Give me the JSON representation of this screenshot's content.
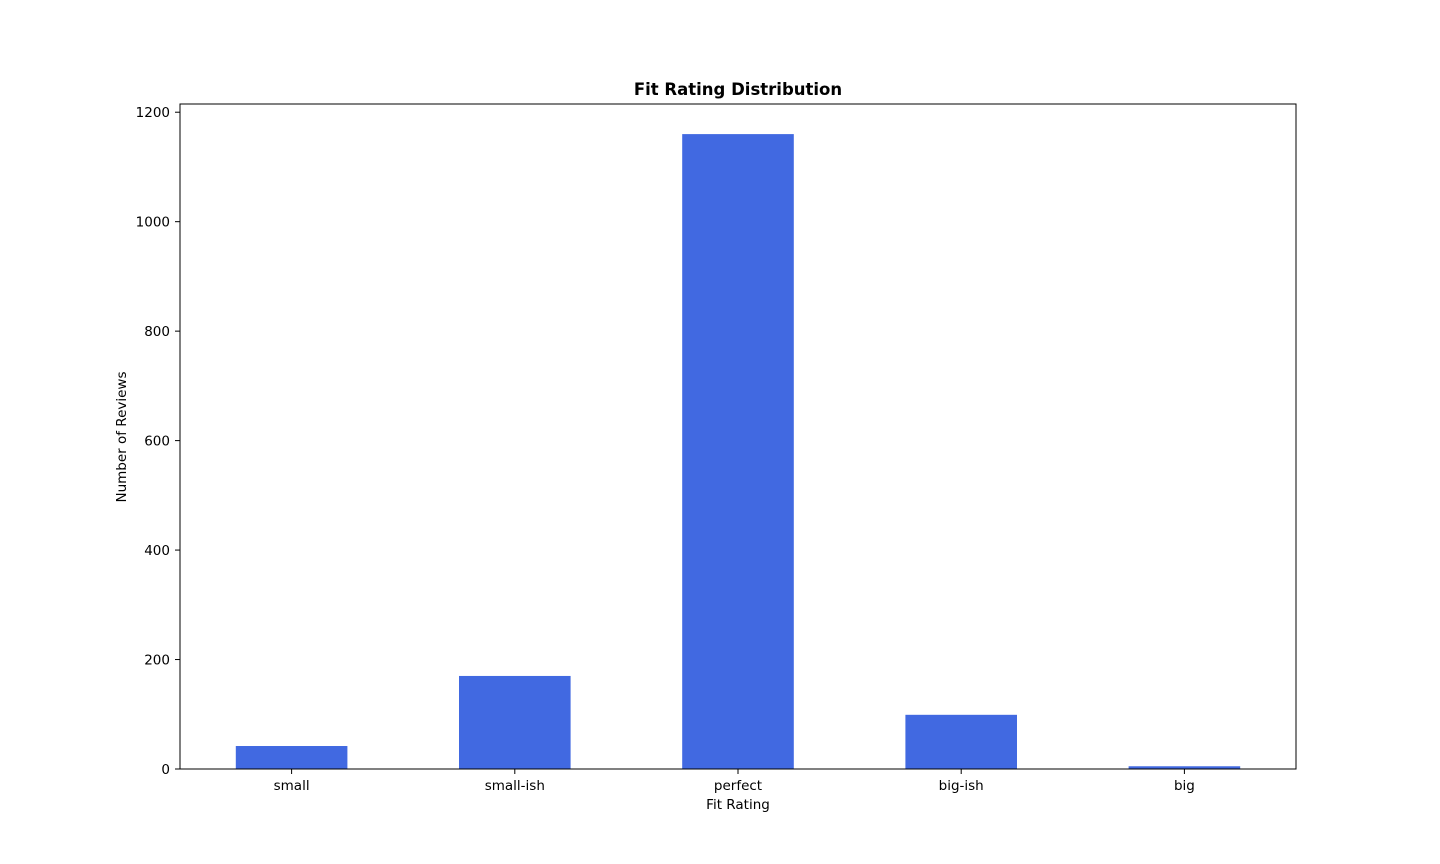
{
  "chart_data": {
    "type": "bar",
    "title": "Fit Rating Distribution",
    "xlabel": "Fit Rating",
    "ylabel": "Number of Reviews",
    "categories": [
      "small",
      "small-ish",
      "perfect",
      "big-ish",
      "big"
    ],
    "values": [
      42,
      170,
      1160,
      99,
      5
    ],
    "ylim": [
      0,
      1215
    ],
    "yticks": [
      0,
      200,
      400,
      600,
      800,
      1000,
      1200
    ],
    "ytick_labels": [
      "0",
      "200",
      "400",
      "600",
      "800",
      "1000",
      "1200"
    ],
    "bar_color": "#4169e1",
    "grid": false,
    "legend": "none"
  }
}
